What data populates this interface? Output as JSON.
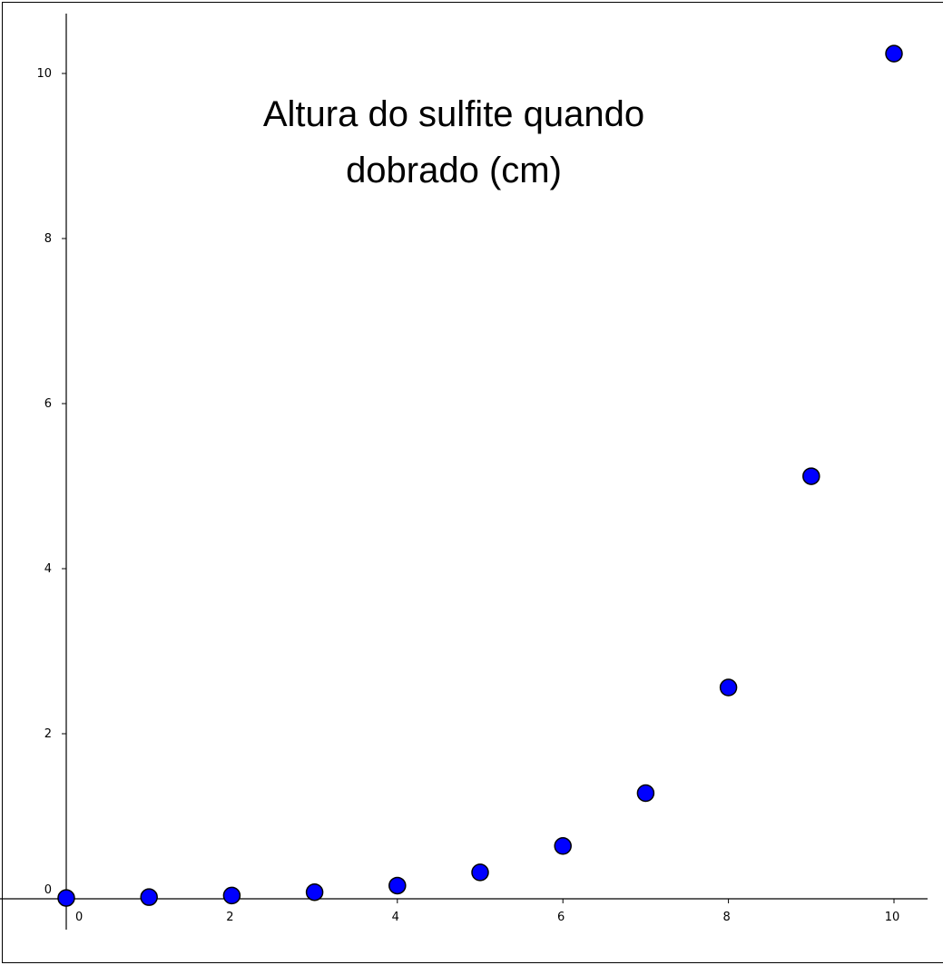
{
  "chart_data": {
    "type": "scatter",
    "title": "Altura do sulfite quando dobrado (cm)",
    "title_lines": [
      "Altura do sulfite quando",
      "dobrado (cm)"
    ],
    "xlabel": "",
    "ylabel": "",
    "xlim": [
      0,
      10
    ],
    "ylim": [
      0,
      10
    ],
    "grid": false,
    "x_ticks": [
      0,
      2,
      4,
      6,
      8,
      10
    ],
    "y_ticks": [
      0,
      2,
      4,
      6,
      8,
      10
    ],
    "marker_color": "#0000ff",
    "marker_edge_color": "#000000",
    "points": [
      {
        "x": 0,
        "y": 0.01
      },
      {
        "x": 1,
        "y": 0.02
      },
      {
        "x": 2,
        "y": 0.04
      },
      {
        "x": 3,
        "y": 0.08
      },
      {
        "x": 4,
        "y": 0.16
      },
      {
        "x": 5,
        "y": 0.32
      },
      {
        "x": 6,
        "y": 0.64
      },
      {
        "x": 7,
        "y": 1.28
      },
      {
        "x": 8,
        "y": 2.56
      },
      {
        "x": 9,
        "y": 5.12
      },
      {
        "x": 10,
        "y": 10.24
      }
    ]
  }
}
